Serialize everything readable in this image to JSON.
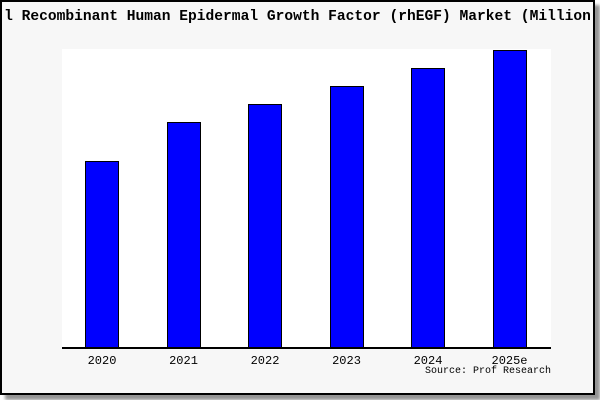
{
  "figure": {
    "title_visible": "l Recombinant Human Epidermal Growth Factor (rhEGF) Market (Million",
    "source_text": "Source: Prof Research"
  },
  "chart_data": {
    "type": "bar",
    "title": "l Recombinant Human Epidermal Growth Factor (rhEGF) Market (Million",
    "categories": [
      "2020",
      "2021",
      "2022",
      "2023",
      "2024",
      "2025e"
    ],
    "values": [
      62,
      75,
      81,
      87,
      93,
      99
    ],
    "xlabel": "",
    "ylabel": "",
    "ylim": [
      0,
      100
    ],
    "y_axis_visible": false,
    "grid": false,
    "legend": null,
    "annotations": [
      "Source: Prof Research"
    ],
    "colors": {
      "bar_fill": "#0000ff",
      "bar_edge": "#000000",
      "plot_background": "#ffffff",
      "figure_background": "#f7f7f7",
      "figure_border": "#000000",
      "text": "#000000"
    }
  }
}
